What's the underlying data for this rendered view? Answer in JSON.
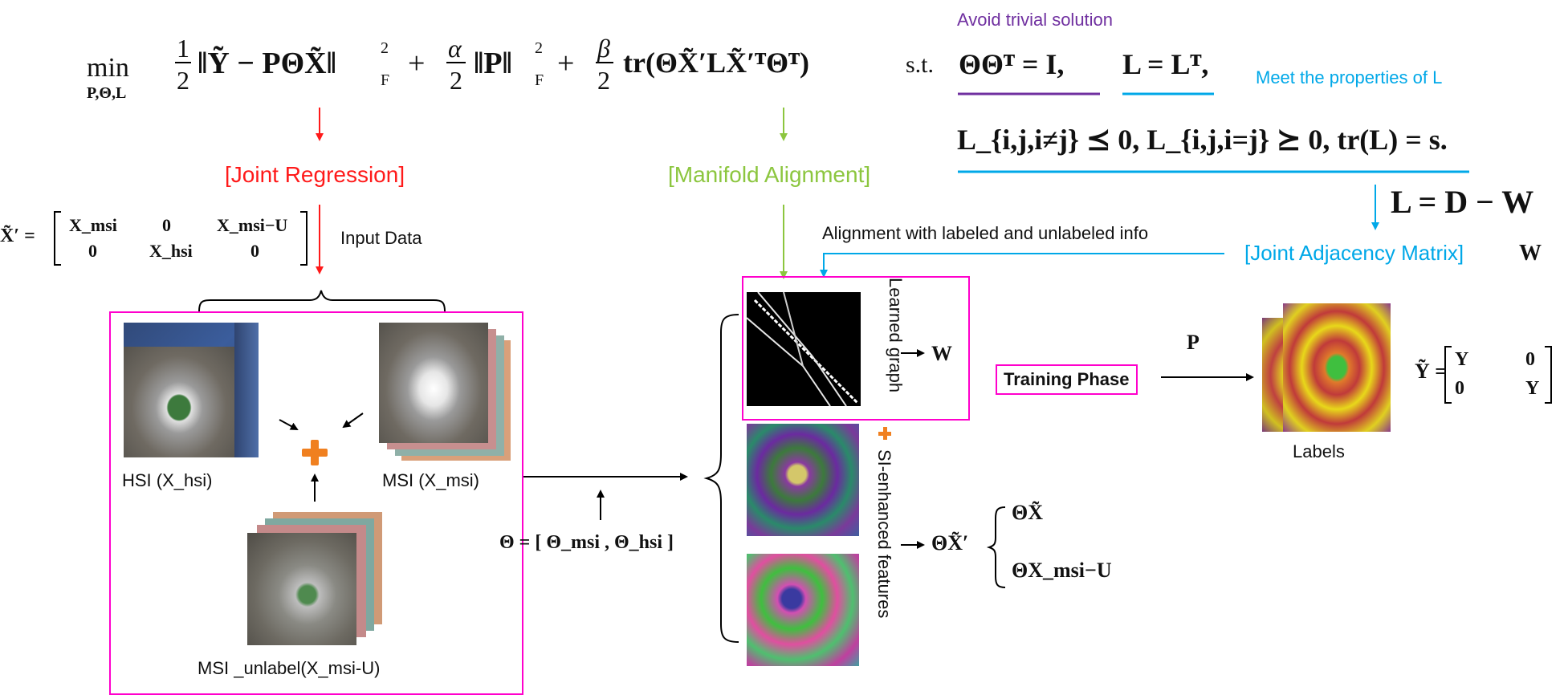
{
  "colors": {
    "red": "#ff1a1a",
    "green": "#8cc63f",
    "cyan": "#00a8e8",
    "purple": "#7030a0",
    "magenta": "#ff00cc",
    "orange": "#f08020",
    "black": "#000000"
  },
  "top": {
    "avoid_trivial": "Avoid trivial solution",
    "meet_properties": "Meet the properties of L",
    "obj_min": "min",
    "obj_vars": "P,Θ,L",
    "obj_half": "1",
    "obj_two": "2",
    "obj_term1": "‖Ỹ − PΘX̃‖",
    "obj_sup2": "2",
    "obj_subF": "F",
    "obj_plus": "+",
    "obj_alpha": "α",
    "obj_term2": "‖P‖",
    "obj_beta": "β",
    "obj_term3": "tr(ΘX̃′LX̃′ᵀΘᵀ)",
    "st": "s.t.",
    "c1": "ΘΘᵀ = I,",
    "c2": "L = Lᵀ,",
    "c3": "L_{i,j,i≠j} ⪯ 0,  L_{i,j,i=j} ⪰ 0,  tr(L) = s.",
    "ldw": "L = D − W"
  },
  "labels": {
    "joint_regression": "[Joint Regression]",
    "manifold_alignment": "[Manifold Alignment]",
    "input_data": "Input Data",
    "alignment": "Alignment with labeled and unlabeled info",
    "joint_adjacency": "[Joint Adjacency Matrix]",
    "joint_adjacency_w": "W",
    "hsi": "HSI (X_hsi)",
    "msi": "MSI (X_msi)",
    "msi_unlabel": "MSI _unlabel(X_msi-U)",
    "learned_graph": "Learned graph",
    "w_out": "W",
    "si_features": "SI-enhanced features",
    "training_phase": "Training Phase",
    "p_label": "P",
    "labels_caption": "Labels",
    "theta_def": "Θ = [ Θ_msi , Θ_hsi ]",
    "theta_x": "ΘX̃′",
    "out1": "ΘX̃",
    "out2": "ΘX_msi−U"
  },
  "matrices": {
    "x_tilde_prime": {
      "lhs": "X̃′ =",
      "rows": [
        [
          "X_msi",
          "0",
          "X_msi−U"
        ],
        [
          "0",
          "X_hsi",
          "0"
        ]
      ]
    },
    "y_tilde": {
      "lhs": "Ỹ =",
      "rows": [
        [
          "Y",
          "0"
        ],
        [
          "0",
          "Y"
        ]
      ]
    }
  }
}
